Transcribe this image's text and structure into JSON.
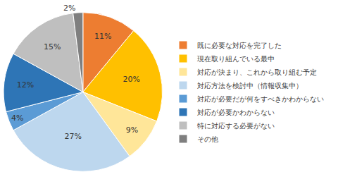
{
  "chart_data": {
    "type": "pie",
    "categories": [
      "既に必要な対応を完了した",
      "現在取り組んでいる最中",
      "対応が決まり、これから取り組む予定",
      "対応方法を検討中（情報収集中）",
      "対応が必要だが何をすべきかわからない",
      "対応が必要かわからない",
      "特に対応する必要がない",
      "その他"
    ],
    "values": [
      11,
      20,
      9,
      27,
      4,
      12,
      15,
      2
    ],
    "value_labels": [
      "11%",
      "20%",
      "9%",
      "27%",
      "4%",
      "12%",
      "15%",
      "2%"
    ],
    "colors": [
      "#ED7D31",
      "#FFC000",
      "#FFE699",
      "#BDD7EE",
      "#5B9BD5",
      "#2E75B6",
      "#BFBFBF",
      "#7F7F7F"
    ],
    "data_labels": true,
    "legend": "right"
  }
}
